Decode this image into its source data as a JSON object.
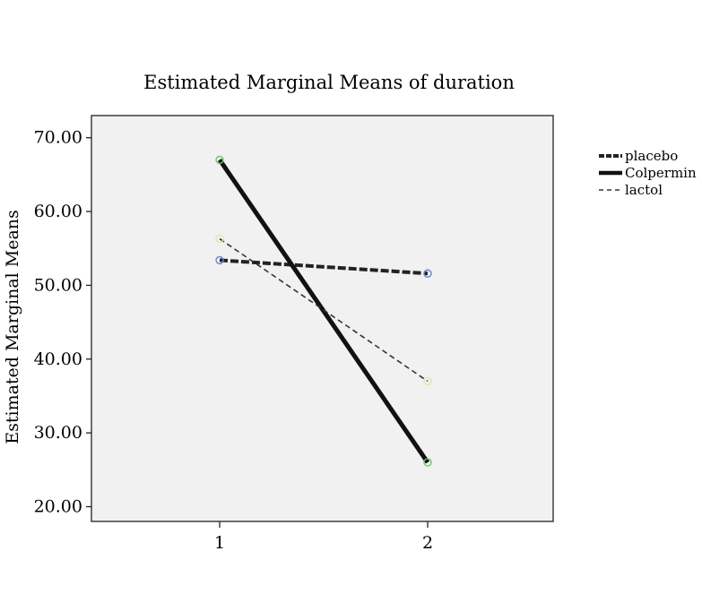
{
  "chart_data": {
    "type": "line",
    "title": "Estimated Marginal Means of duration",
    "xlabel": "",
    "ylabel": "Estimated Marginal Means",
    "categories": [
      "1",
      "2"
    ],
    "ylim": [
      18,
      73
    ],
    "yticks": [
      "20.00",
      "30.00",
      "40.00",
      "50.00",
      "60.00",
      "70.00"
    ],
    "legend_position": "right",
    "plot_background": "#f1f1f1",
    "series": [
      {
        "name": "placebo",
        "values": [
          53.4,
          51.6
        ],
        "line": "dashed-heavy",
        "marker_color": "#6a84c8"
      },
      {
        "name": "Colpermin",
        "values": [
          67.0,
          26.0
        ],
        "line": "solid-heavy",
        "marker_color": "#6cc36c"
      },
      {
        "name": "lactol",
        "values": [
          56.3,
          37.0
        ],
        "line": "dashed-thin",
        "marker_color": "#e6e3b4"
      }
    ]
  }
}
